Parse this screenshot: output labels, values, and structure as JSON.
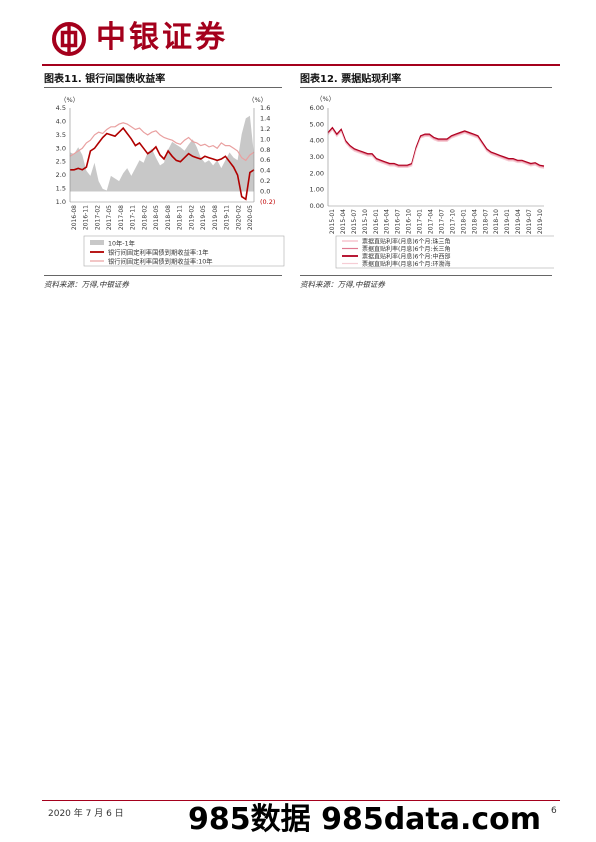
{
  "header": {
    "logo_text": "中银证券"
  },
  "fig11": {
    "title": "图表11. 银行间国债收益率",
    "source": "资料来源：万得,中银证券",
    "chart_data": {
      "type": "line",
      "left_unit": "（%）",
      "right_unit": "（%）",
      "left_ticks": [
        "1.0",
        "1.5",
        "2.0",
        "2.5",
        "3.0",
        "3.5",
        "4.0",
        "4.5"
      ],
      "right_ticks": [
        "(0.2)",
        "0.0",
        "0.2",
        "0.4",
        "0.6",
        "0.8",
        "1.0",
        "1.2",
        "1.4",
        "1.6"
      ],
      "x_ticks": [
        "2016-08",
        "2016-11",
        "2017-02",
        "2017-05",
        "2017-08",
        "2017-11",
        "2018-02",
        "2018-05",
        "2018-08",
        "2018-11",
        "2019-02",
        "2019-05",
        "2019-08",
        "2019-11",
        "2020-02",
        "2020-05"
      ],
      "ylim_left": [
        1.0,
        4.5
      ],
      "ylim_right": [
        -0.2,
        1.6
      ],
      "series": [
        {
          "name": "10年-1年",
          "kind": "area",
          "axis": "right",
          "color": "#c8c8c8",
          "values": [
            0.75,
            0.72,
            0.85,
            0.7,
            0.4,
            0.3,
            0.55,
            0.2,
            0.05,
            0.02,
            0.3,
            0.25,
            0.2,
            0.35,
            0.45,
            0.3,
            0.45,
            0.6,
            0.55,
            0.75,
            0.82,
            0.65,
            0.5,
            0.55,
            0.8,
            0.95,
            0.9,
            0.85,
            0.78,
            0.9,
            1.0,
            0.85,
            0.65,
            0.55,
            0.6,
            0.5,
            0.6,
            0.45,
            0.6,
            0.75,
            0.65,
            0.6,
            1.1,
            1.4,
            1.45,
            0.7
          ]
        },
        {
          "name": "银行间固定利率国债到期收益率:1年",
          "kind": "line",
          "axis": "left",
          "color": "#b00000",
          "values": [
            2.2,
            2.2,
            2.25,
            2.2,
            2.3,
            2.9,
            3.0,
            3.2,
            3.4,
            3.55,
            3.5,
            3.45,
            3.6,
            3.75,
            3.55,
            3.35,
            3.1,
            3.2,
            3.0,
            2.8,
            2.9,
            3.05,
            2.75,
            2.6,
            2.9,
            2.7,
            2.55,
            2.5,
            2.65,
            2.8,
            2.7,
            2.65,
            2.6,
            2.7,
            2.65,
            2.6,
            2.55,
            2.6,
            2.7,
            2.5,
            2.3,
            2.0,
            1.2,
            1.1,
            2.1,
            2.2
          ]
        },
        {
          "name": "银行间固定利率国债到期收益率:10年",
          "kind": "line",
          "axis": "left",
          "color": "#e9a0a0",
          "values": [
            2.7,
            2.8,
            2.9,
            3.0,
            3.2,
            3.3,
            3.5,
            3.6,
            3.55,
            3.7,
            3.8,
            3.8,
            3.9,
            3.95,
            3.9,
            3.8,
            3.7,
            3.75,
            3.6,
            3.5,
            3.6,
            3.65,
            3.5,
            3.4,
            3.35,
            3.3,
            3.2,
            3.15,
            3.3,
            3.4,
            3.25,
            3.2,
            3.1,
            3.15,
            3.05,
            3.1,
            3.0,
            3.2,
            3.1,
            3.1,
            3.0,
            2.9,
            2.65,
            2.55,
            2.75,
            2.85
          ]
        }
      ]
    }
  },
  "fig12": {
    "title": "图表12. 票据贴现利率",
    "source": "资料来源：万得,中银证券",
    "chart_data": {
      "type": "line",
      "left_unit": "（%）",
      "y_ticks": [
        "0.00",
        "1.00",
        "2.00",
        "3.00",
        "4.00",
        "5.00",
        "6.00"
      ],
      "ylim": [
        0,
        6
      ],
      "x_ticks": [
        "2015-01",
        "2015-04",
        "2015-07",
        "2015-10",
        "2016-01",
        "2016-04",
        "2016-07",
        "2016-10",
        "2017-01",
        "2017-04",
        "2017-07",
        "2017-10",
        "2018-01",
        "2018-04",
        "2018-07",
        "2018-10",
        "2019-01",
        "2019-04",
        "2019-07",
        "2019-10"
      ],
      "series": [
        {
          "name": "票据直贴利率(月息)6个月:珠三角",
          "color": "#f2b6c0",
          "values": [
            4.4,
            4.7,
            4.3,
            4.6,
            3.9,
            3.6,
            3.4,
            3.3,
            3.2,
            3.1,
            3.1,
            2.8,
            2.7,
            2.6,
            2.5,
            2.5,
            2.4,
            2.4,
            2.4,
            2.5,
            3.5,
            4.2,
            4.3,
            4.3,
            4.1,
            4.0,
            4.0,
            4.0,
            4.2,
            4.3,
            4.4,
            4.5,
            4.4,
            4.3,
            4.2,
            3.8,
            3.4,
            3.2,
            3.1,
            3.0,
            2.9,
            2.8,
            2.8,
            2.7,
            2.7,
            2.6,
            2.5,
            2.55,
            2.4,
            2.35
          ]
        },
        {
          "name": "票据直贴利率(月息)6个月:长三角",
          "color": "#e07890",
          "values": [
            4.45,
            4.75,
            4.35,
            4.65,
            3.95,
            3.65,
            3.45,
            3.35,
            3.25,
            3.15,
            3.15,
            2.85,
            2.75,
            2.65,
            2.55,
            2.55,
            2.45,
            2.45,
            2.45,
            2.55,
            3.55,
            4.25,
            4.35,
            4.35,
            4.15,
            4.05,
            4.05,
            4.05,
            4.25,
            4.35,
            4.45,
            4.55,
            4.45,
            4.35,
            4.25,
            3.85,
            3.45,
            3.25,
            3.15,
            3.05,
            2.95,
            2.85,
            2.85,
            2.75,
            2.75,
            2.65,
            2.55,
            2.6,
            2.45,
            2.4
          ]
        },
        {
          "name": "票据直贴利率(月息)6个月:中西部",
          "color": "#b00020",
          "values": [
            4.5,
            4.8,
            4.4,
            4.7,
            4.0,
            3.7,
            3.5,
            3.4,
            3.3,
            3.2,
            3.2,
            2.9,
            2.8,
            2.7,
            2.6,
            2.6,
            2.5,
            2.5,
            2.5,
            2.6,
            3.6,
            4.3,
            4.4,
            4.4,
            4.2,
            4.1,
            4.1,
            4.1,
            4.3,
            4.4,
            4.5,
            4.6,
            4.5,
            4.4,
            4.3,
            3.9,
            3.5,
            3.3,
            3.2,
            3.1,
            3.0,
            2.9,
            2.9,
            2.8,
            2.8,
            2.7,
            2.6,
            2.65,
            2.5,
            2.45
          ]
        },
        {
          "name": "票据直贴利率(月息)6个月:环渤海",
          "color": "#f6cdd5",
          "values": [
            4.35,
            4.65,
            4.25,
            4.55,
            3.85,
            3.55,
            3.35,
            3.25,
            3.15,
            3.05,
            3.05,
            2.75,
            2.65,
            2.55,
            2.45,
            2.45,
            2.35,
            2.35,
            2.35,
            2.45,
            3.45,
            4.15,
            4.25,
            4.25,
            4.05,
            3.95,
            3.95,
            3.95,
            4.15,
            4.25,
            4.35,
            4.45,
            4.35,
            4.25,
            4.15,
            3.75,
            3.35,
            3.15,
            3.05,
            2.95,
            2.85,
            2.75,
            2.75,
            2.65,
            2.65,
            2.55,
            2.45,
            2.5,
            2.35,
            2.3
          ]
        }
      ]
    }
  },
  "footer": {
    "date": "2020 年 7 月 6 日",
    "page": "6",
    "watermark": "985数据 985data.com"
  }
}
